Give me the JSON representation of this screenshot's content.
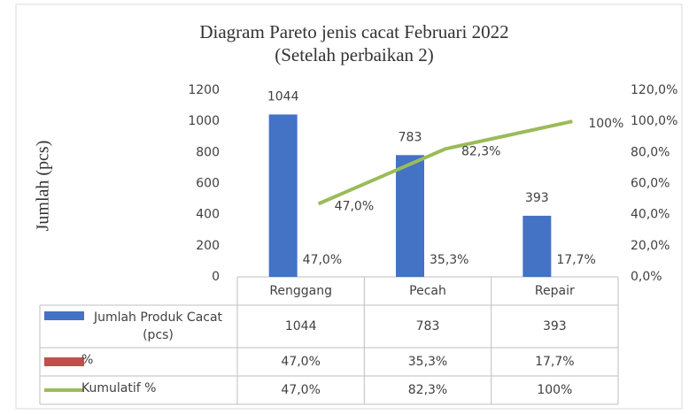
{
  "chart_data": {
    "type": "bar",
    "title": "Diagram Pareto jenis cacat Februari 2022",
    "subtitle": "(Setelah perbaikan 2)",
    "ylabel": "Jumlah (pcs)",
    "categories": [
      "Renggang",
      "Pecah",
      "Repair"
    ],
    "series": [
      {
        "name": "Jumlah Produk Cacat (pcs)",
        "type": "bar",
        "color": "#4472c4",
        "values": [
          1044,
          783,
          393
        ]
      },
      {
        "name": "%",
        "type": "label",
        "axis": "y2",
        "color": "#c0504d",
        "values": [
          47.0,
          35.3,
          17.7
        ],
        "value_labels": [
          "47,0%",
          "35,3%",
          "17,7%"
        ]
      },
      {
        "name": "Kumulatif %",
        "type": "line",
        "axis": "y2",
        "color": "#9bbb59",
        "values": [
          47.0,
          82.3,
          100
        ],
        "value_labels": [
          "47,0%",
          "82,3%",
          "100%"
        ]
      }
    ],
    "ylim": [
      0,
      1200
    ],
    "yticks": [
      0,
      200,
      400,
      600,
      800,
      1000,
      1200
    ],
    "y2lim": [
      0,
      120
    ],
    "y2ticks": [
      {
        "value": 0,
        "label": "0,0%"
      },
      {
        "value": 20,
        "label": "20,0%"
      },
      {
        "value": 40,
        "label": "40,0%"
      },
      {
        "value": 60,
        "label": "60,0%"
      },
      {
        "value": 80,
        "label": "80,0%"
      },
      {
        "value": 100,
        "label": "100,0%"
      },
      {
        "value": 120,
        "label": "120,0%"
      }
    ],
    "data_table": true
  }
}
